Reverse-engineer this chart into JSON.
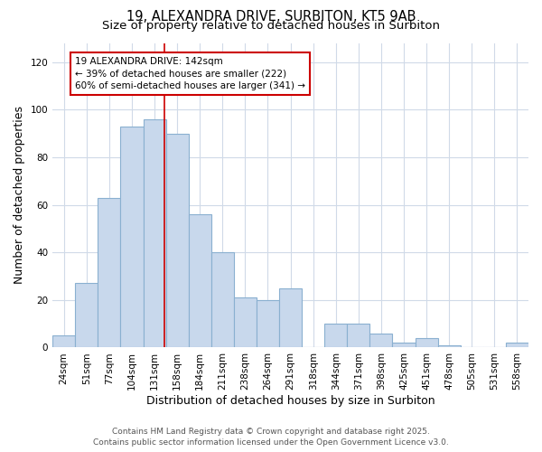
{
  "title": "19, ALEXANDRA DRIVE, SURBITON, KT5 9AB",
  "subtitle": "Size of property relative to detached houses in Surbiton",
  "xlabel": "Distribution of detached houses by size in Surbiton",
  "ylabel": "Number of detached properties",
  "categories": [
    "24sqm",
    "51sqm",
    "77sqm",
    "104sqm",
    "131sqm",
    "158sqm",
    "184sqm",
    "211sqm",
    "238sqm",
    "264sqm",
    "291sqm",
    "318sqm",
    "344sqm",
    "371sqm",
    "398sqm",
    "425sqm",
    "451sqm",
    "478sqm",
    "505sqm",
    "531sqm",
    "558sqm"
  ],
  "values": [
    5,
    27,
    63,
    93,
    96,
    90,
    56,
    40,
    21,
    20,
    25,
    0,
    10,
    10,
    6,
    2,
    4,
    1,
    0,
    0,
    2
  ],
  "bar_color": "#c8d8ec",
  "bar_edge_color": "#8ab0d0",
  "vline_x_index": 4.42,
  "vline_color": "#cc0000",
  "annotation_line1": "19 ALEXANDRA DRIVE: 142sqm",
  "annotation_line2": "← 39% of detached houses are smaller (222)",
  "annotation_line3": "60% of semi-detached houses are larger (341) →",
  "annotation_box_color": "#ffffff",
  "annotation_box_edge": "#cc0000",
  "ylim": [
    0,
    128
  ],
  "yticks": [
    0,
    20,
    40,
    60,
    80,
    100,
    120
  ],
  "bg_color": "#ffffff",
  "plot_bg_color": "#ffffff",
  "grid_color": "#d0dae8",
  "footer_line1": "Contains HM Land Registry data © Crown copyright and database right 2025.",
  "footer_line2": "Contains public sector information licensed under the Open Government Licence v3.0.",
  "title_fontsize": 10.5,
  "subtitle_fontsize": 9.5,
  "axis_label_fontsize": 9,
  "tick_fontsize": 7.5,
  "annotation_fontsize": 7.5,
  "footer_fontsize": 6.5
}
